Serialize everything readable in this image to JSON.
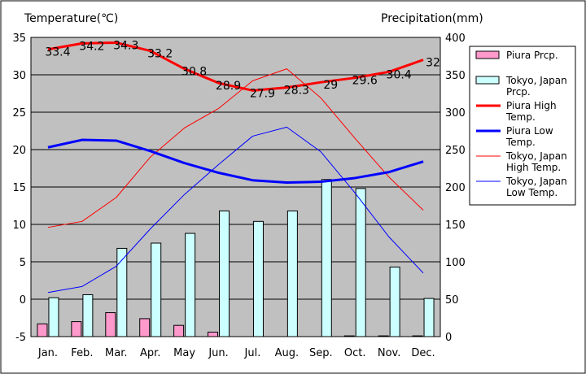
{
  "chart_data": {
    "type": "bar",
    "categories": [
      "Jan.",
      "Feb.",
      "Mar.",
      "Apr.",
      "May",
      "Jun.",
      "Jul.",
      "Aug.",
      "Sep.",
      "Oct.",
      "Nov.",
      "Dec."
    ],
    "ylabel_left": "Temperature(℃)",
    "ylabel_right": "Precipitation(mm)",
    "ylim_left": [
      -5,
      35
    ],
    "ylim_right": [
      0,
      400
    ],
    "yticks_left": [
      "35",
      "30",
      "25",
      "20",
      "15",
      "10",
      "5",
      "0",
      "-5"
    ],
    "yticks_right": [
      "400",
      "350",
      "300",
      "250",
      "200",
      "150",
      "100",
      "50",
      "0"
    ],
    "grid": true,
    "legend_position": "right",
    "bar_series": [
      {
        "name": "Piura Prcp.",
        "color": "#ff99cc",
        "axis": "right",
        "values": [
          17,
          20,
          32,
          24,
          15,
          6,
          0,
          0,
          0,
          1,
          1,
          1
        ]
      },
      {
        "name": "Tokyo, Japan Prcp.",
        "color": "#ccffff",
        "axis": "right",
        "values": [
          52,
          56,
          118,
          125,
          138,
          168,
          154,
          168,
          210,
          198,
          93,
          51
        ]
      }
    ],
    "line_series": [
      {
        "name": "Piura High Temp.",
        "color": "#ff0000",
        "width": 3,
        "axis": "left",
        "values": [
          33.4,
          34.2,
          34.3,
          33.2,
          30.8,
          28.9,
          27.9,
          28.3,
          29,
          29.6,
          30.4,
          32
        ],
        "labels": [
          "33.4",
          "34.2",
          "34.3",
          "33.2",
          "30.8",
          "28.9",
          "27.9",
          "28.3",
          "29",
          "29.6",
          "30.4",
          "32"
        ]
      },
      {
        "name": "Piura Low Temp.",
        "color": "#0000ff",
        "width": 3,
        "axis": "left",
        "values": [
          20.3,
          21.3,
          21.2,
          19.8,
          18.2,
          16.9,
          15.9,
          15.6,
          15.7,
          16.2,
          17,
          18.4
        ]
      },
      {
        "name": "Tokyo, Japan High Temp.",
        "color": "#ff0000",
        "width": 1,
        "axis": "left",
        "values": [
          9.6,
          10.4,
          13.6,
          19,
          22.9,
          25.5,
          29.2,
          30.8,
          26.9,
          21.5,
          16.3,
          11.9
        ]
      },
      {
        "name": "Tokyo, Japan Low Temp.",
        "color": "#0000ff",
        "width": 1,
        "axis": "left",
        "values": [
          0.9,
          1.7,
          4.4,
          9.4,
          14,
          18,
          21.8,
          23,
          19.7,
          14.2,
          8.3,
          3.5
        ]
      }
    ]
  }
}
